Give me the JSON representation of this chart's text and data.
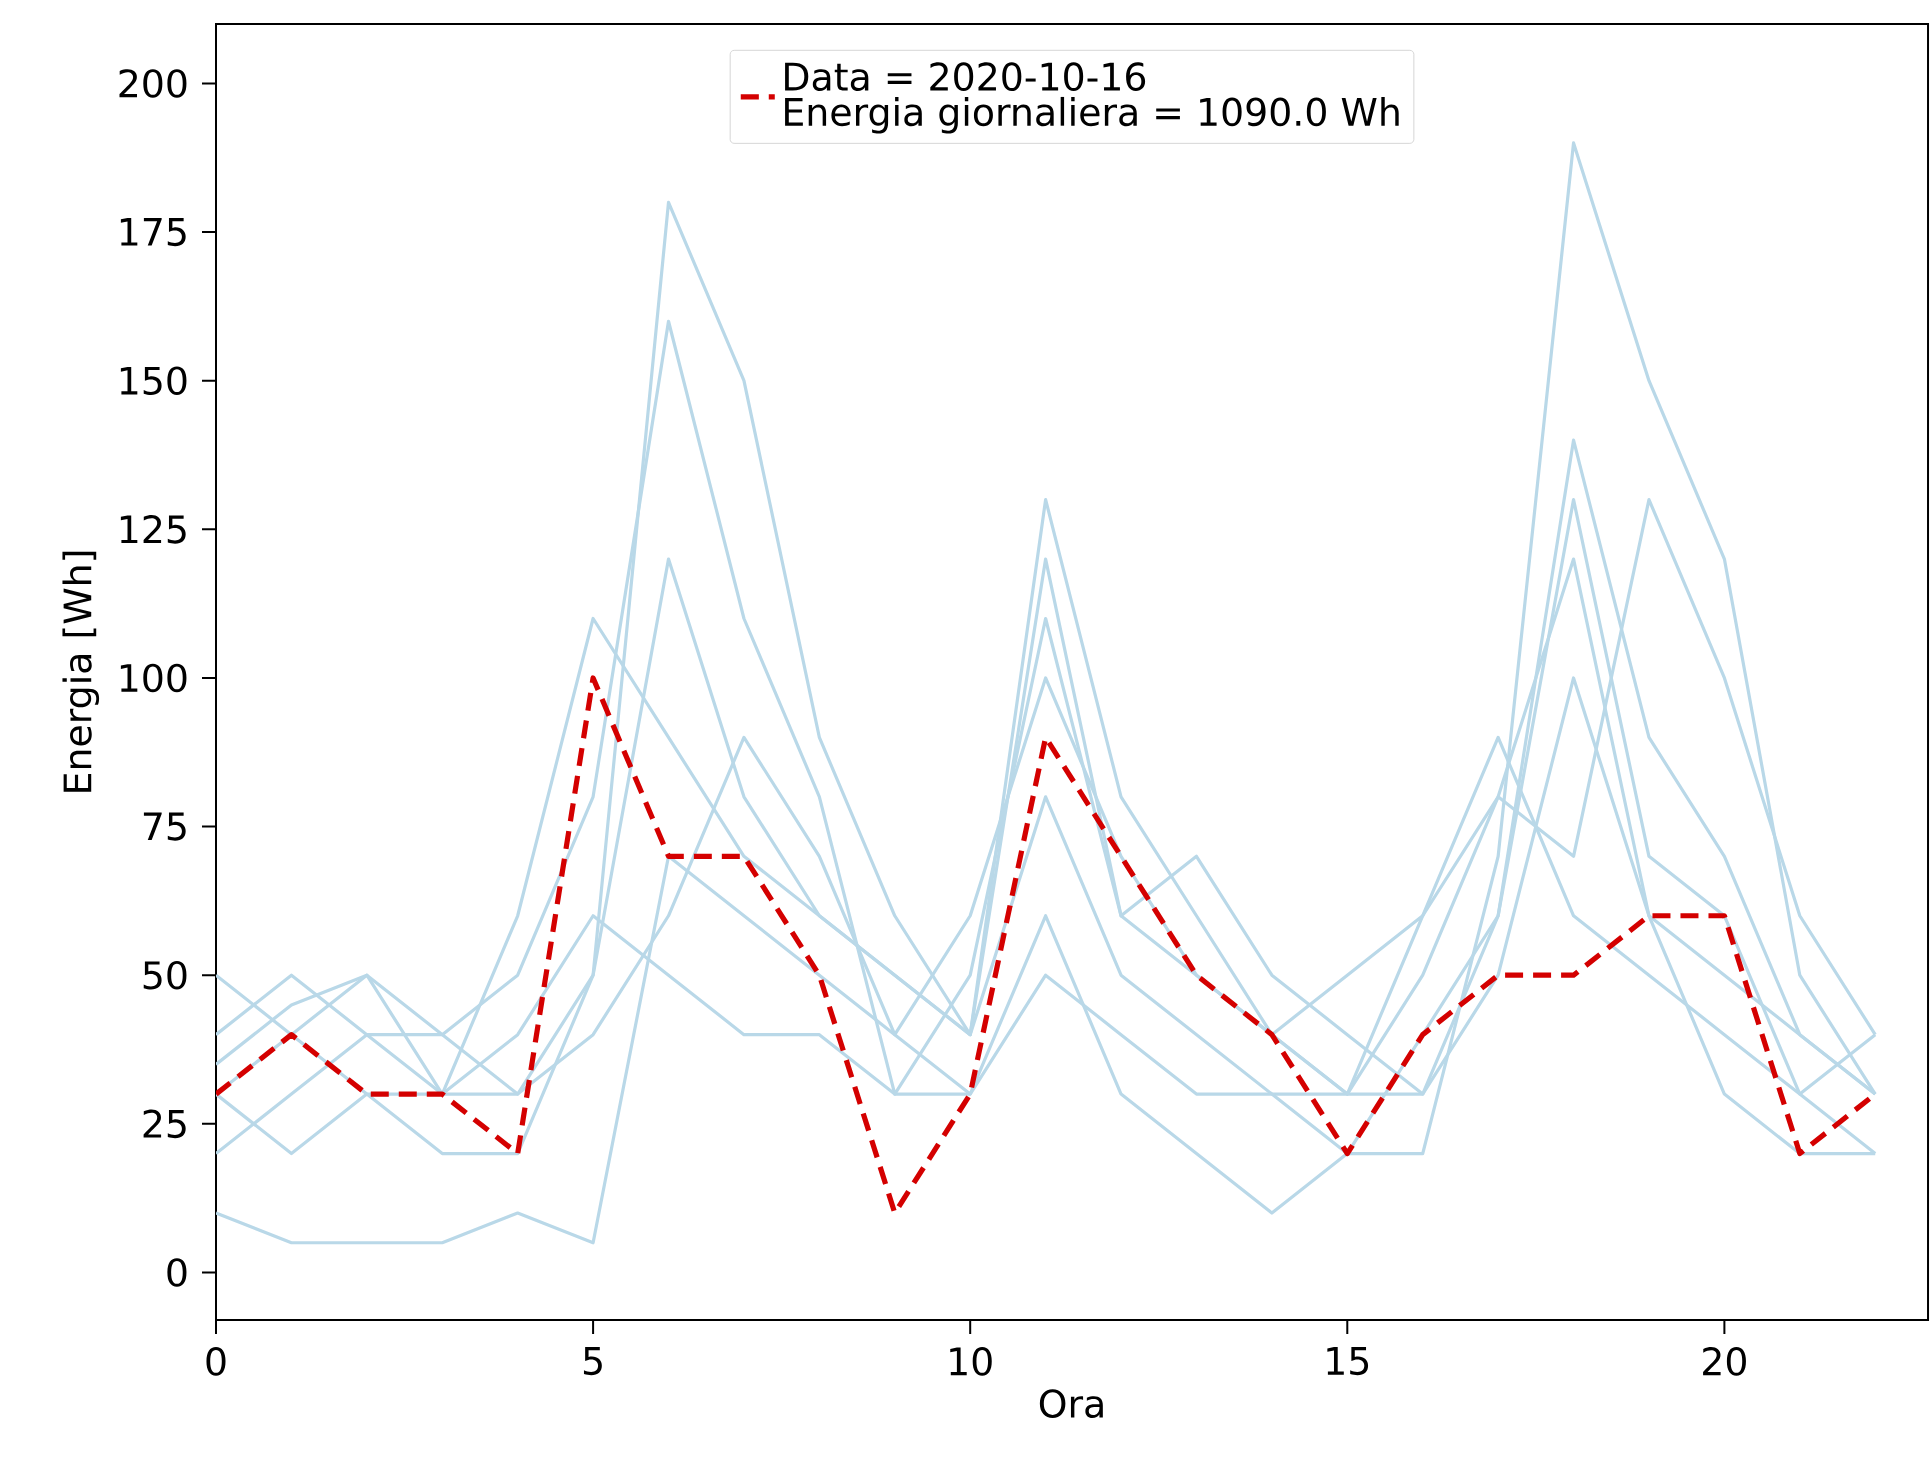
{
  "chart_data": {
    "type": "line",
    "xlabel": "Ora",
    "ylabel": "Energia [Wh]",
    "x": [
      0,
      1,
      2,
      3,
      4,
      5,
      6,
      7,
      8,
      9,
      10,
      11,
      12,
      13,
      14,
      15,
      16,
      17,
      18,
      19,
      20,
      21,
      22
    ],
    "xlim": [
      0,
      22.7
    ],
    "xticks": [
      0,
      5,
      10,
      15,
      20
    ],
    "ylim": [
      -8,
      210
    ],
    "yticks": [
      0,
      25,
      50,
      75,
      100,
      125,
      150,
      175,
      200
    ],
    "legend": "top",
    "annotations": [
      "Energia giornaliera = 1090.0 Wh"
    ],
    "series": [
      {
        "color": "#b9d8e8",
        "line_style": "solid",
        "values": [
          40,
          50,
          40,
          30,
          30,
          50,
          120,
          80,
          60,
          50,
          40,
          130,
          80,
          60,
          40,
          30,
          30,
          50,
          100,
          60,
          50,
          40,
          30
        ]
      },
      {
        "color": "#b9d8e8",
        "line_style": "solid",
        "values": [
          50,
          40,
          50,
          40,
          30,
          40,
          60,
          90,
          70,
          40,
          60,
          100,
          70,
          50,
          40,
          30,
          60,
          90,
          60,
          50,
          40,
          30,
          40
        ]
      },
      {
        "color": "#b9d8e8",
        "line_style": "solid",
        "values": [
          30,
          20,
          30,
          20,
          20,
          50,
          180,
          150,
          90,
          60,
          40,
          80,
          50,
          40,
          30,
          20,
          20,
          70,
          190,
          150,
          120,
          50,
          30
        ]
      },
      {
        "color": "#b9d8e8",
        "line_style": "solid",
        "values": [
          20,
          30,
          40,
          40,
          50,
          80,
          160,
          110,
          80,
          30,
          50,
          110,
          60,
          70,
          50,
          40,
          30,
          60,
          140,
          90,
          70,
          40,
          30
        ]
      },
      {
        "color": "#b9d8e8",
        "line_style": "solid",
        "values": [
          10,
          5,
          5,
          5,
          10,
          5,
          70,
          60,
          50,
          40,
          30,
          60,
          30,
          20,
          10,
          20,
          40,
          60,
          130,
          70,
          60,
          30,
          20
        ]
      },
      {
        "color": "#b9d8e8",
        "line_style": "solid",
        "values": [
          35,
          45,
          50,
          30,
          60,
          110,
          90,
          70,
          60,
          50,
          40,
          120,
          60,
          50,
          40,
          50,
          60,
          80,
          70,
          130,
          100,
          60,
          40
        ]
      },
      {
        "color": "#b9d8e8",
        "line_style": "solid",
        "values": [
          30,
          40,
          30,
          30,
          40,
          60,
          50,
          40,
          40,
          30,
          30,
          50,
          40,
          30,
          30,
          30,
          50,
          80,
          120,
          60,
          30,
          20,
          20
        ]
      },
      {
        "name": "Data = 2020-10-16",
        "color": "#d40000",
        "line_style": "dashed",
        "values": [
          30,
          40,
          30,
          30,
          20,
          100,
          70,
          70,
          50,
          10,
          30,
          90,
          70,
          50,
          40,
          20,
          40,
          50,
          50,
          60,
          60,
          20,
          30
        ]
      }
    ]
  }
}
